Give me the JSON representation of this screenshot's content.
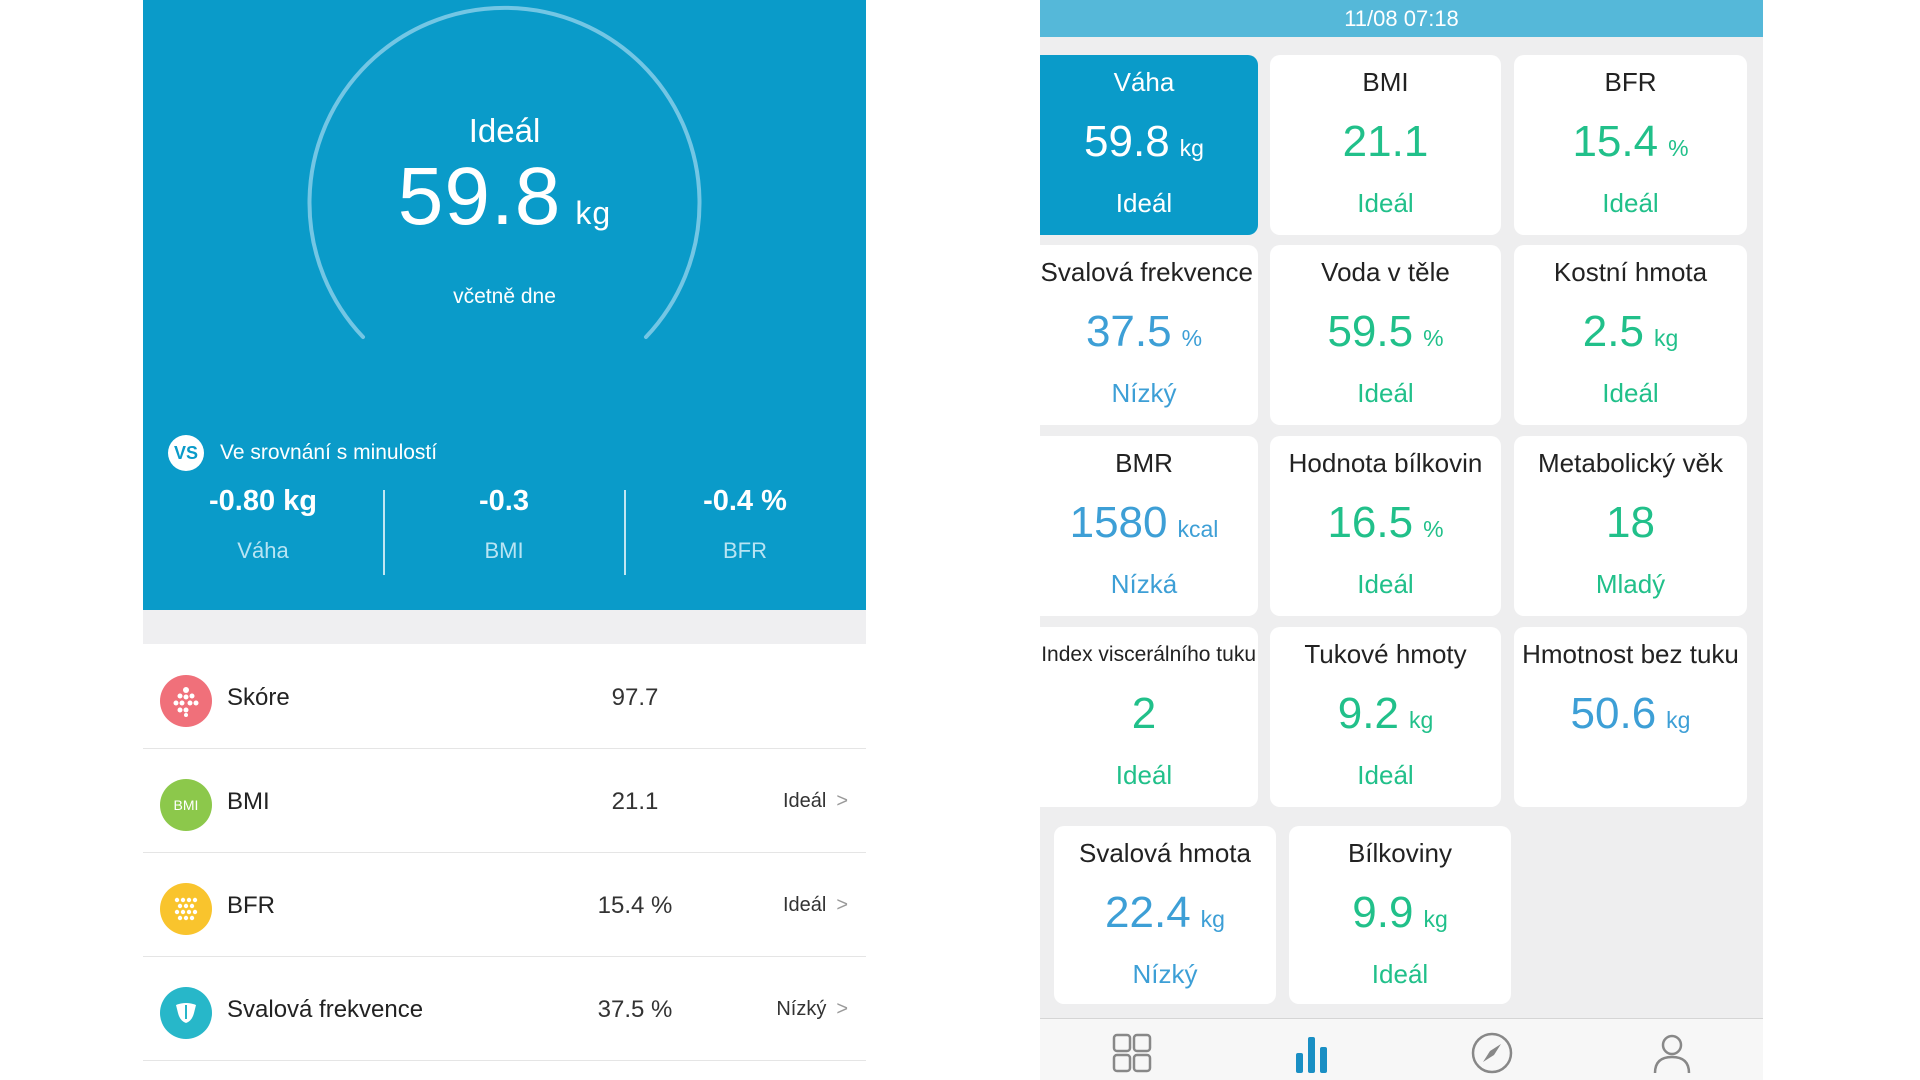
{
  "left": {
    "hero": {
      "status": "Ideál",
      "value": "59.8",
      "unit": "kg",
      "subtitle": "včetně dne",
      "vs_badge": "VS",
      "vs_label": "Ve srovnání s minulostí",
      "comparisons": [
        {
          "value": "-0.80 kg",
          "label": "Váha"
        },
        {
          "value": "-0.3",
          "label": "BMI"
        },
        {
          "value": "-0.4 %",
          "label": "BFR"
        }
      ]
    },
    "rows": [
      {
        "icon": "score-icon",
        "icon_color": "#f0707a",
        "name": "Skóre",
        "value": "97.7",
        "status": ""
      },
      {
        "icon": "bmi-icon",
        "icon_text": "BMI",
        "icon_color": "#8cc84b",
        "name": "BMI",
        "value": "21.1",
        "status": "Ideál"
      },
      {
        "icon": "bfr-icon",
        "icon_color": "#f9c42d",
        "name": "BFR",
        "value": "15.4 %",
        "status": "Ideál"
      },
      {
        "icon": "muscle-icon",
        "icon_color": "#27b7c9",
        "name": "Svalová frekvence",
        "value": "37.5 %",
        "status": "Nízký"
      }
    ],
    "chevron": ">"
  },
  "right": {
    "date": "11/08 07:18",
    "tiles": [
      {
        "title": "Váha",
        "value": "59.8",
        "unit": "kg",
        "status": "Ideál",
        "tone": "active"
      },
      {
        "title": "BMI",
        "value": "21.1",
        "unit": "",
        "status": "Ideál",
        "tone": "green"
      },
      {
        "title": "BFR",
        "value": "15.4",
        "unit": "%",
        "status": "Ideál",
        "tone": "green"
      },
      {
        "title": "Svalová frekvence",
        "value": "37.5",
        "unit": "%",
        "status": "Nízký",
        "tone": "blue"
      },
      {
        "title": "Voda v těle",
        "value": "59.5",
        "unit": "%",
        "status": "Ideál",
        "tone": "green"
      },
      {
        "title": "Kostní hmota",
        "value": "2.5",
        "unit": "kg",
        "status": "Ideál",
        "tone": "green"
      },
      {
        "title": "BMR",
        "value": "1580",
        "unit": "kcal",
        "status": "Nízká",
        "tone": "blue"
      },
      {
        "title": "Hodnota bílkovin",
        "value": "16.5",
        "unit": "%",
        "status": "Ideál",
        "tone": "green"
      },
      {
        "title": "Metabolický věk",
        "value": "18",
        "unit": "",
        "status": "Mladý",
        "tone": "green"
      },
      {
        "title": "Index viscerálního tuku",
        "value": "2",
        "unit": "",
        "status": "Ideál",
        "tone": "green"
      },
      {
        "title": "Tukové hmoty",
        "value": "9.2",
        "unit": "kg",
        "status": "Ideál",
        "tone": "green"
      },
      {
        "title": "Hmotnost bez tuku",
        "value": "50.6",
        "unit": "kg",
        "status": "",
        "tone": "blue"
      },
      {
        "title": "Svalová hmota",
        "value": "22.4",
        "unit": "kg",
        "status": "Nízký",
        "tone": "blue"
      },
      {
        "title": "Bílkoviny",
        "value": "9.9",
        "unit": "kg",
        "status": "Ideál",
        "tone": "green"
      }
    ],
    "tabs": [
      {
        "icon": "grid-icon"
      },
      {
        "icon": "bar-chart-icon",
        "active": true
      },
      {
        "icon": "compass-icon"
      },
      {
        "icon": "profile-icon"
      }
    ],
    "colors": {
      "accent": "#0a9bc9",
      "green": "#21c08a",
      "blue": "#3d9fd6",
      "active_tab": "#1a8fc4"
    }
  }
}
